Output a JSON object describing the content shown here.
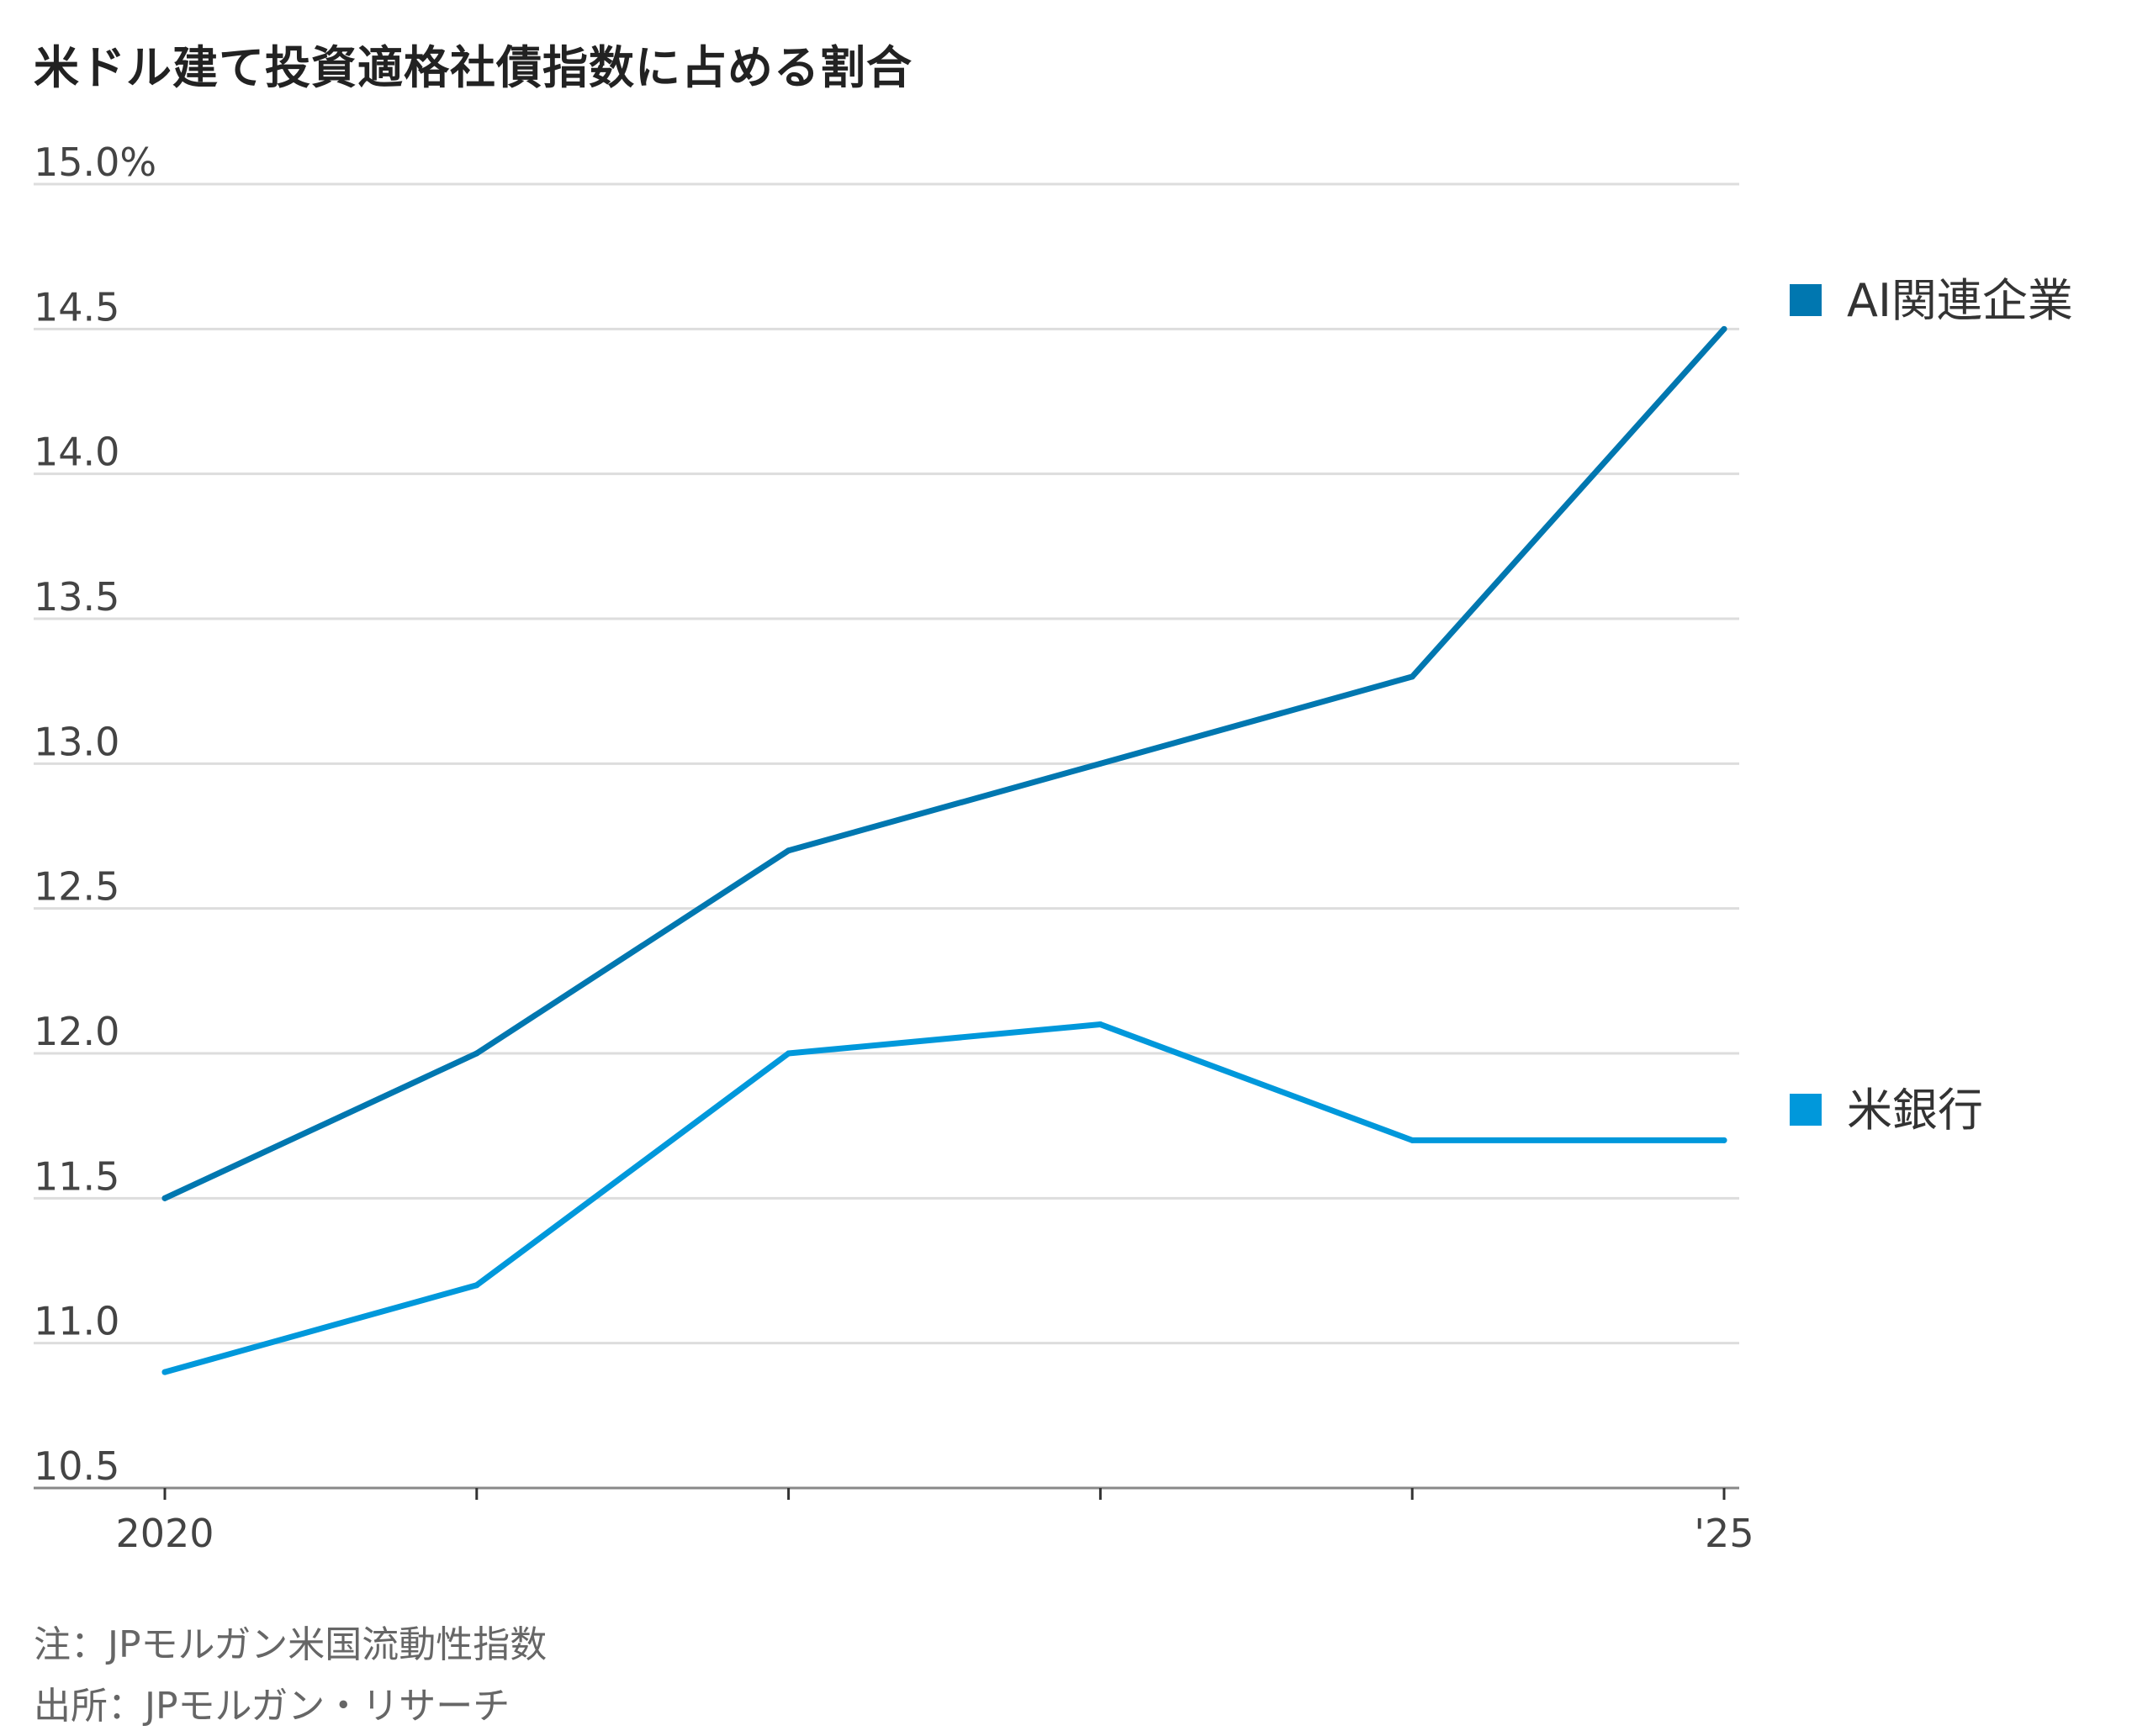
{
  "title": "米ドル建て投資適格社債指数に占める割合",
  "notes": {
    "note": "注：JPモルガン米国流動性指数",
    "source": "出所：JPモルガン・リサーチ"
  },
  "colors": {
    "ai": "#0077b0",
    "banks": "#0098db",
    "grid": "#dddddd",
    "axis": "#888888",
    "tick_text": "#444444"
  },
  "chart_data": {
    "type": "line",
    "title": "米ドル建て投資適格社債指数に占める割合",
    "x": [
      2020,
      2021,
      2022,
      2023,
      2024,
      2025
    ],
    "x_tick_labels": [
      "2020",
      "",
      "",
      "",
      "",
      "'25"
    ],
    "y_tick_labels": [
      "10.5",
      "11.0",
      "11.5",
      "12.0",
      "12.5",
      "13.0",
      "13.5",
      "14.0",
      "14.5",
      "15.0%"
    ],
    "y_ticks": [
      10.5,
      11.0,
      11.5,
      12.0,
      12.5,
      13.0,
      13.5,
      14.0,
      14.5,
      15.0
    ],
    "ylim": [
      10.5,
      15.0
    ],
    "grid": true,
    "legend_placement": "right, at line ends",
    "series": [
      {
        "name": "AI関連企業",
        "color": "#0077b0",
        "values": [
          11.5,
          12.0,
          12.7,
          13.0,
          13.3,
          14.5
        ]
      },
      {
        "name": "米銀行",
        "color": "#0098db",
        "values": [
          10.9,
          11.2,
          12.0,
          12.1,
          11.7,
          11.7
        ]
      }
    ]
  }
}
